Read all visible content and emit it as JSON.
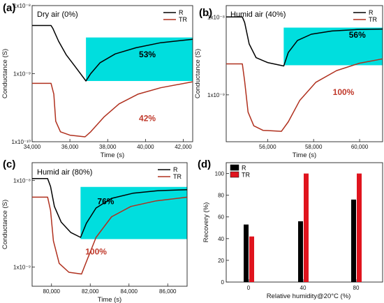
{
  "chart_data": [
    {
      "panel": "(a)",
      "type": "line",
      "title": "Dry air (0%)",
      "xlabel": "Time (s)",
      "ylabel": "Conductance (S)",
      "x_ticks": [
        "34,000",
        "36,000",
        "38,000",
        "40,000",
        "42,000"
      ],
      "x_tick_values": [
        34000,
        36000,
        38000,
        40000,
        42000
      ],
      "xlim": [
        34000,
        42500
      ],
      "y_scale": "log",
      "y_tick_labels": [
        "1x10⁻⁸",
        "1x10⁻⁹",
        "1x10⁻¹⁰"
      ],
      "y_tick_values": [
        1e-08,
        1e-09,
        1e-10
      ],
      "ylim": [
        1e-10,
        1e-08
      ],
      "legend": [
        "R",
        "TR"
      ],
      "series": [
        {
          "name": "R",
          "color": "#000000",
          "x": [
            34000,
            35000,
            35100,
            35400,
            35800,
            36300,
            36850,
            37100,
            37600,
            38400,
            39500,
            40800,
            42500
          ],
          "y": [
            5.1e-09,
            5.1e-09,
            4.6e-09,
            3e-09,
            1.9e-09,
            1.25e-09,
            7.8e-10,
            1e-09,
            1.45e-09,
            1.95e-09,
            2.4e-09,
            2.85e-09,
            3.2e-09
          ]
        },
        {
          "name": "TR",
          "color": "#b0301e",
          "x": [
            34000,
            35000,
            35150,
            35250,
            35500,
            36000,
            36800,
            37100,
            37800,
            38600,
            39600,
            40800,
            42500
          ],
          "y": [
            7.2e-10,
            7.2e-10,
            5e-10,
            2e-10,
            1.4e-10,
            1.25e-10,
            1.18e-10,
            1.4e-10,
            2.3e-10,
            3.6e-10,
            5e-10,
            6.2e-10,
            7.6e-10
          ]
        }
      ],
      "highlight_band": {
        "x": [
          36850,
          42500
        ],
        "y": [
          7.8e-10,
          3.4e-09
        ],
        "color": "#00dede"
      },
      "annotations": [
        {
          "text": "53%",
          "color": "#000000",
          "x": 40100,
          "y": 1.75e-09
        },
        {
          "text": "42%",
          "color": "#c0392b",
          "x": 40100,
          "y": 2e-10
        }
      ]
    },
    {
      "panel": "(b)",
      "type": "line",
      "title": "Humid air (40%)",
      "xlabel": "Time (s)",
      "ylabel": "Conductance (S)",
      "x_ticks": [
        "56,000",
        "58,000",
        "60,000"
      ],
      "x_tick_values": [
        56000,
        58000,
        60000
      ],
      "xlim": [
        54200,
        61000
      ],
      "y_scale": "log",
      "y_tick_labels": [
        "1x10⁻⁸",
        "1x10⁻⁹"
      ],
      "y_tick_values": [
        1e-08,
        1e-09
      ],
      "ylim": [
        2.5e-10,
        1.4e-08
      ],
      "legend": [
        "R",
        "TR"
      ],
      "series": [
        {
          "name": "R",
          "color": "#000000",
          "x": [
            54200,
            54900,
            55000,
            55200,
            55500,
            56000,
            56700,
            56900,
            57300,
            57900,
            58800,
            59900,
            61000
          ],
          "y": [
            1e-08,
            1e-08,
            8.5e-09,
            4.5e-09,
            3e-09,
            2.6e-09,
            2.35e-09,
            3.5e-09,
            5e-09,
            6e-09,
            6.6e-09,
            6.9e-09,
            7e-09
          ]
        },
        {
          "name": "TR",
          "color": "#b0301e",
          "x": [
            54200,
            54900,
            55000,
            55150,
            55400,
            55800,
            56600,
            56900,
            57400,
            58100,
            59000,
            60000,
            61000
          ],
          "y": [
            2.5e-09,
            2.5e-09,
            1.5e-09,
            6e-10,
            4e-10,
            3.5e-10,
            3.4e-10,
            4.5e-10,
            8.5e-10,
            1.45e-09,
            2.05e-09,
            2.55e-09,
            2.9e-09
          ]
        }
      ],
      "highlight_band": {
        "x": [
          56700,
          61000
        ],
        "y": [
          2.4e-09,
          7.3e-09
        ],
        "color": "#00dede"
      },
      "annotations": [
        {
          "text": "56%",
          "color": "#000000",
          "x": 59900,
          "y": 5.4e-09
        },
        {
          "text": "100%",
          "color": "#c0392b",
          "x": 59300,
          "y": 1e-09
        }
      ]
    },
    {
      "panel": "(c)",
      "type": "line",
      "title": "Humid air (80%)",
      "xlabel": "Time (s)",
      "ylabel": "Conductance (S)",
      "x_ticks": [
        "80,000",
        "82,000",
        "84,000",
        "86,000"
      ],
      "x_tick_values": [
        80000,
        82000,
        84000,
        86000
      ],
      "xlim": [
        79000,
        87000
      ],
      "y_scale": "log",
      "y_tick_labels": [
        "1x10⁻⁸",
        "1x10⁻⁹"
      ],
      "y_tick_values": [
        1e-08,
        1e-09
      ],
      "ylim": [
        6e-10,
        1.6e-08
      ],
      "legend": [
        "R",
        "TR"
      ],
      "series": [
        {
          "name": "R",
          "color": "#000000",
          "x": [
            79000,
            79800,
            79950,
            80150,
            80500,
            81000,
            81500,
            81800,
            82300,
            83100,
            84200,
            85500,
            87000
          ],
          "y": [
            1.05e-08,
            1.05e-08,
            8.5e-09,
            5e-09,
            3.3e-09,
            2.5e-09,
            2.2e-09,
            3.2e-09,
            4.8e-09,
            6.2e-09,
            7.1e-09,
            7.6e-09,
            7.8e-09
          ]
        },
        {
          "name": "TR",
          "color": "#b0301e",
          "x": [
            79000,
            79800,
            79950,
            80100,
            80400,
            80900,
            81550,
            81800,
            82300,
            83100,
            84100,
            85400,
            87000
          ],
          "y": [
            6.4e-09,
            6.4e-09,
            4.5e-09,
            2e-09,
            1.1e-09,
            8.7e-10,
            8.3e-10,
            1.15e-09,
            2.2e-09,
            3.8e-09,
            5e-09,
            5.8e-09,
            6.4e-09
          ]
        }
      ],
      "highlight_band": {
        "x": [
          81500,
          87000
        ],
        "y": [
          2.1e-09,
          8.4e-09
        ],
        "color": "#00dede"
      },
      "annotations": [
        {
          "text": "76%",
          "color": "#000000",
          "x": 82800,
          "y": 5.3e-09
        },
        {
          "text": "100%",
          "color": "#c0392b",
          "x": 82300,
          "y": 1.4e-09
        }
      ]
    },
    {
      "panel": "(d)",
      "type": "bar",
      "xlabel": "Relative humidity@20°C (%)",
      "ylabel": "Recovery (%)",
      "categories": [
        "0",
        "40",
        "80"
      ],
      "ylim": [
        0,
        110
      ],
      "y_ticks": [
        0,
        20,
        40,
        60,
        80,
        100
      ],
      "legend": [
        "R",
        "TR"
      ],
      "series": [
        {
          "name": "R",
          "color": "#000000",
          "values": [
            53,
            56,
            76
          ]
        },
        {
          "name": "TR",
          "color": "#e0141e",
          "values": [
            42,
            100,
            100
          ]
        }
      ]
    }
  ]
}
